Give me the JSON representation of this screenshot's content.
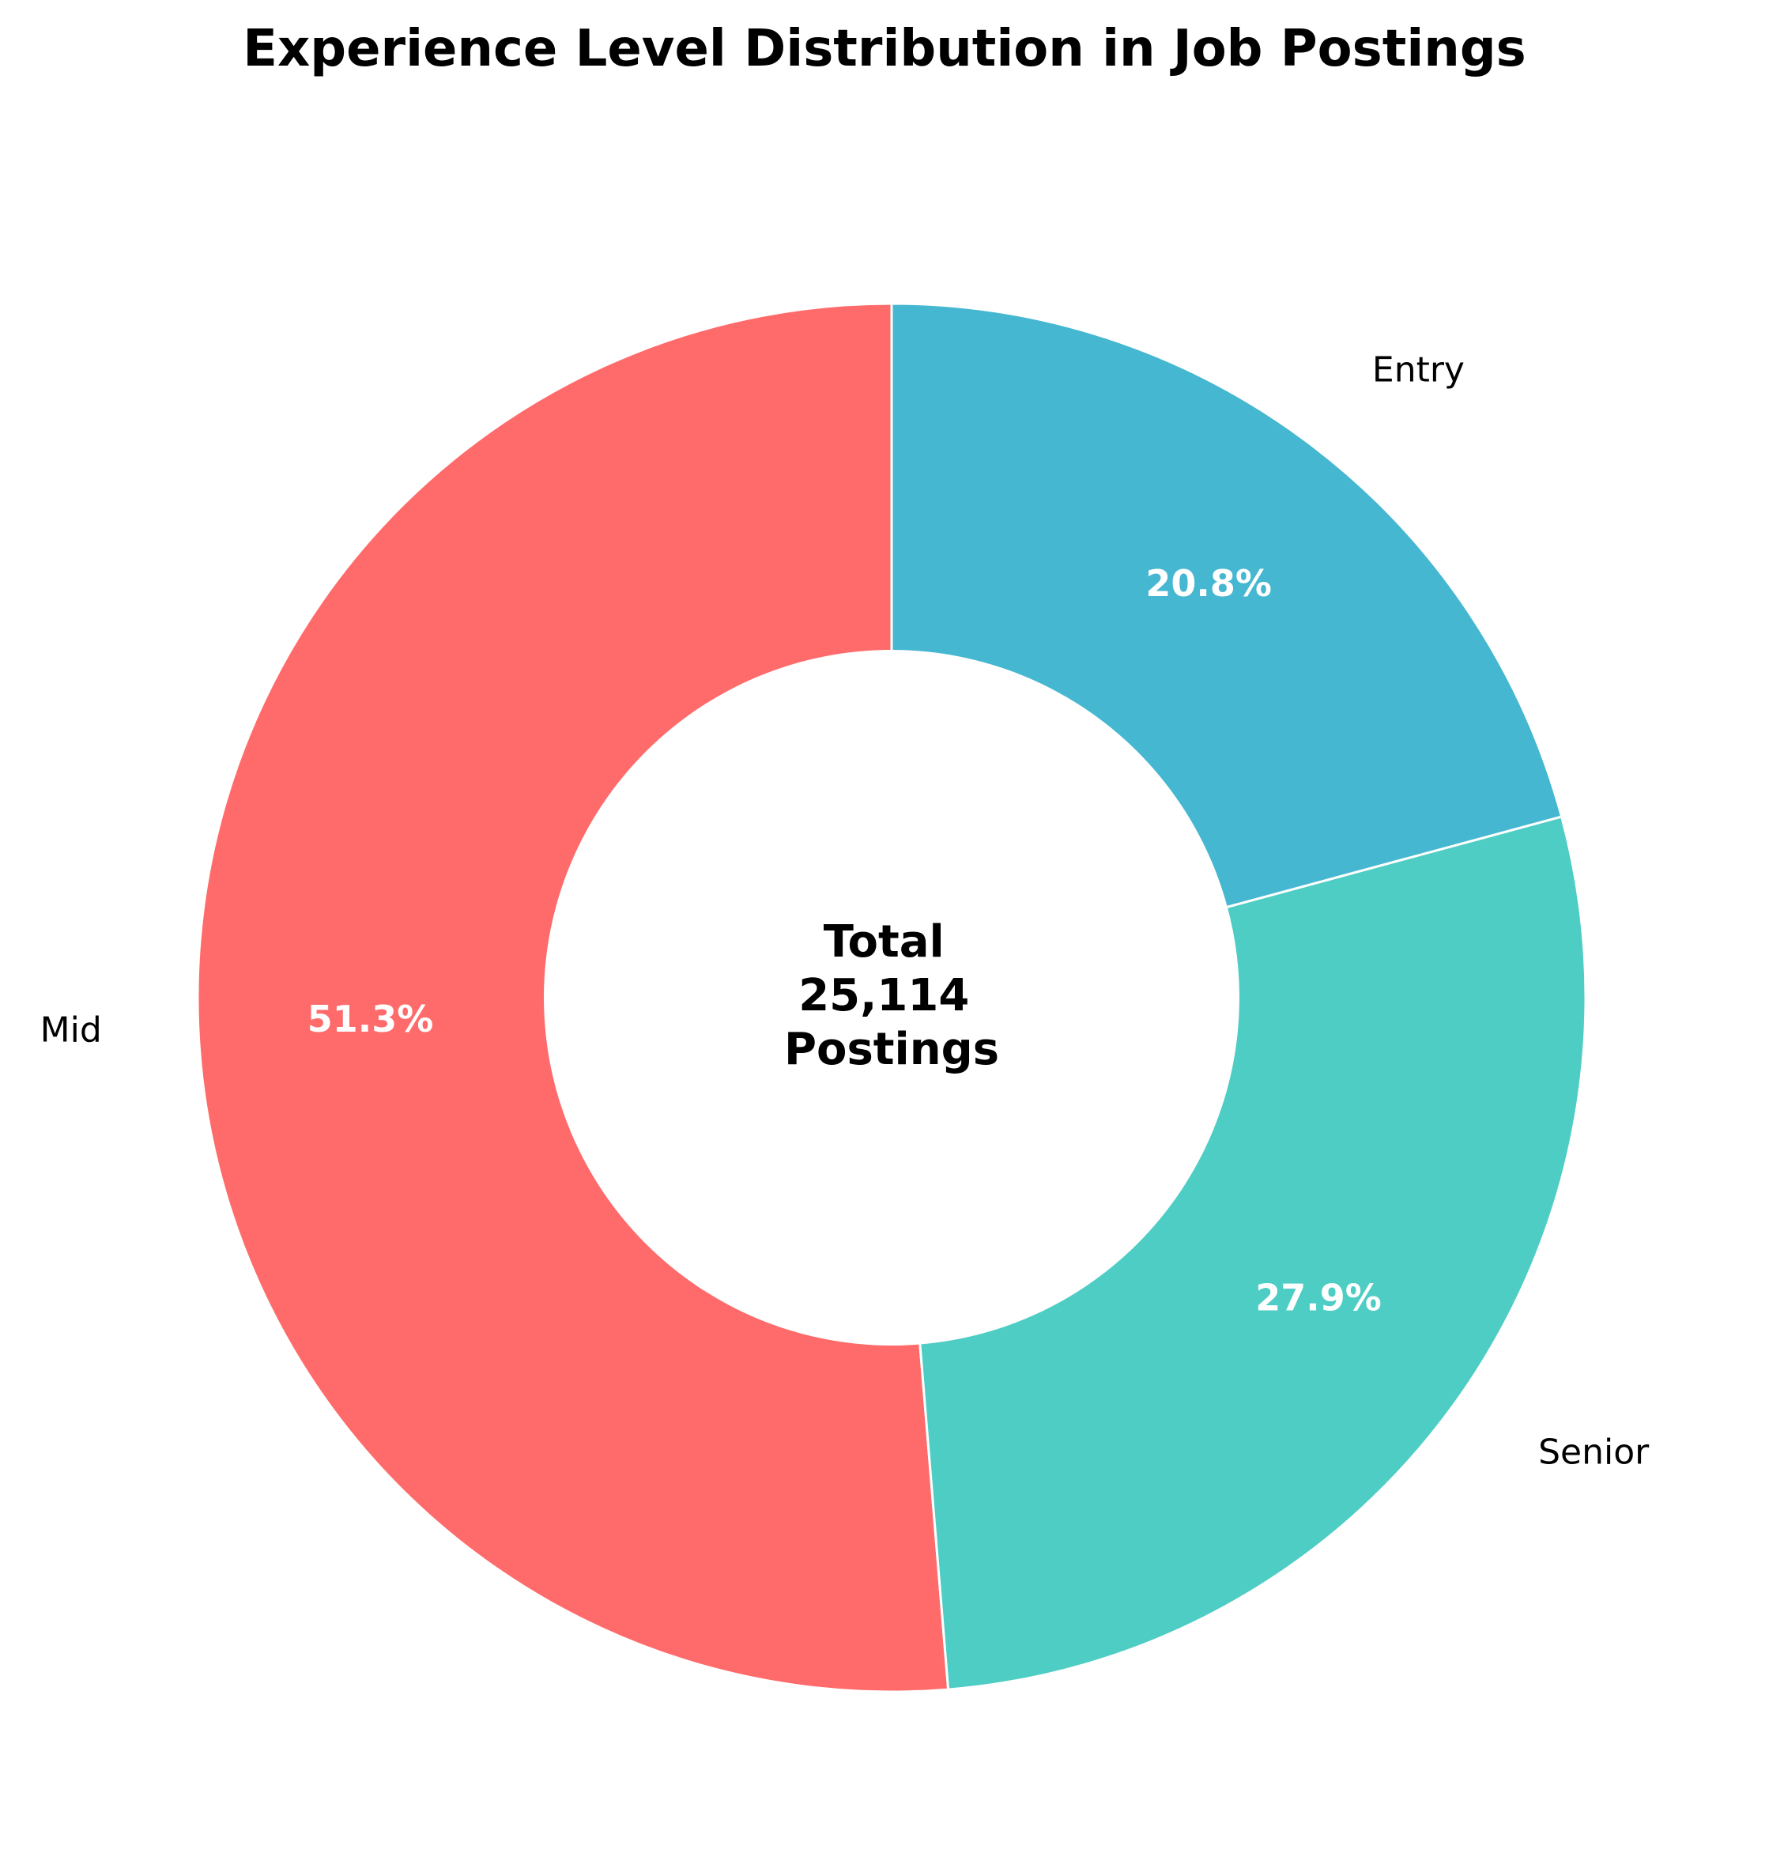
{
  "chart_data": {
    "type": "pie",
    "title": "Experience Level Distribution in Job Postings",
    "donut": true,
    "start_angle_deg": 90,
    "direction": "counterclockwise",
    "slices": [
      {
        "label": "Mid",
        "percent": 51.3,
        "percent_label": "51.3%",
        "color": "#FF6B6B"
      },
      {
        "label": "Senior",
        "percent": 27.9,
        "percent_label": "27.9%",
        "color": "#4ECDC4"
      },
      {
        "label": "Entry",
        "percent": 20.8,
        "percent_label": "20.8%",
        "color": "#45B7D1"
      }
    ],
    "center_label": {
      "line1": "Total",
      "line2": "25,114",
      "line3": "Postings"
    },
    "total": 25114
  }
}
